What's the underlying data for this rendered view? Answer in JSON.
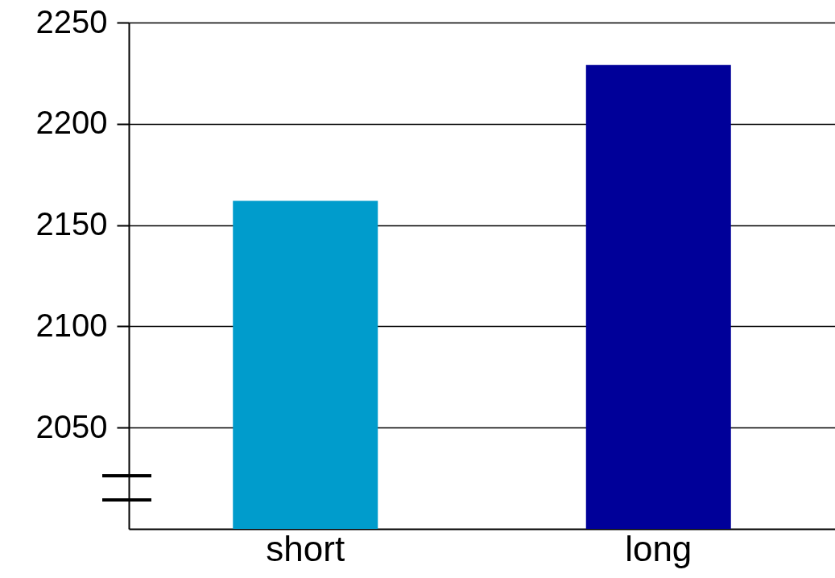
{
  "chart_data": {
    "type": "bar",
    "categories": [
      "short",
      "long"
    ],
    "values": [
      2162,
      2229
    ],
    "colors": [
      "#009ccc",
      "#000099"
    ],
    "ylim": [
      2000,
      2250
    ],
    "yticks": [
      2050,
      2100,
      2150,
      2200,
      2250
    ],
    "grid": "y",
    "legend": false
  }
}
